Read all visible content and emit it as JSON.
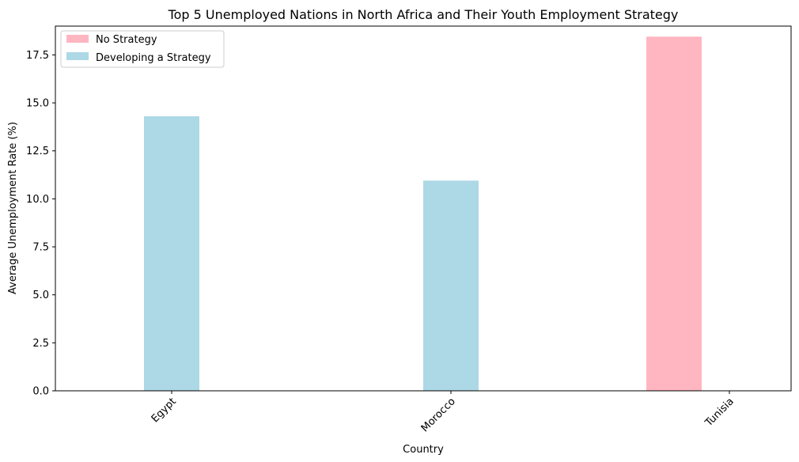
{
  "chart_data": {
    "type": "bar",
    "title": "Top 5 Unemployed Nations in North Africa and Their Youth Employment Strategy",
    "xlabel": "Country",
    "ylabel": "Average Unemployment Rate (%)",
    "categories": [
      "Egypt",
      "Morocco",
      "Tunisia"
    ],
    "series": [
      {
        "name": "No Strategy",
        "color": "#ffb6c1",
        "values": [
          0,
          0,
          18.45
        ]
      },
      {
        "name": "Developing a Strategy",
        "color": "#add8e6",
        "values": [
          14.3,
          10.95,
          0
        ]
      }
    ],
    "ylim": [
      0,
      19.0
    ],
    "yticks": [
      "0.0",
      "2.5",
      "5.0",
      "7.5",
      "10.0",
      "12.5",
      "15.0",
      "17.5"
    ],
    "legend_position": "top-left",
    "grid": false
  }
}
